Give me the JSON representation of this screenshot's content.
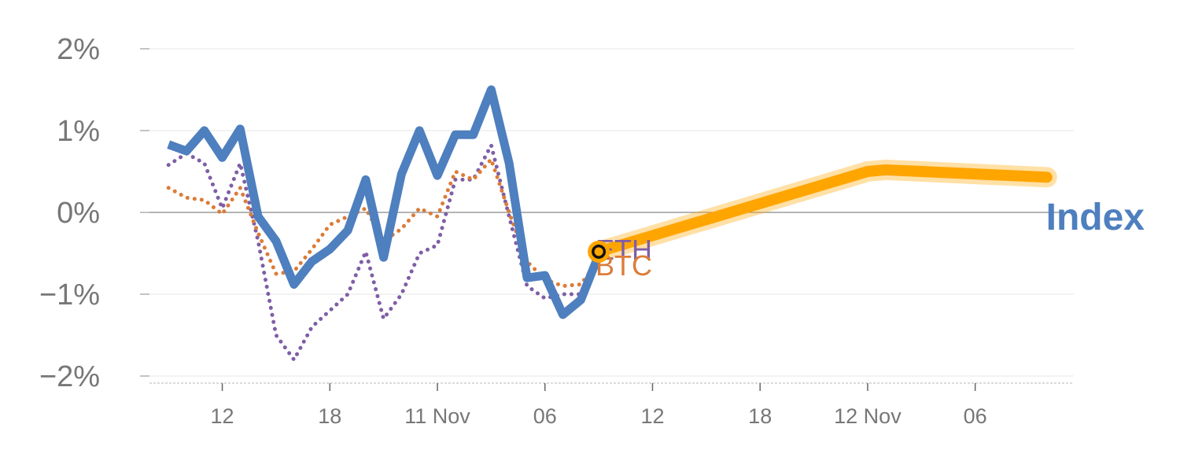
{
  "chart_data": {
    "type": "line",
    "y_unit": "%",
    "ylim": [
      -2,
      2
    ],
    "y_ticks": [
      {
        "value": 2,
        "label": "2%"
      },
      {
        "value": 1,
        "label": "1%"
      },
      {
        "value": 0,
        "label": "0%"
      },
      {
        "value": -1,
        "label": "−1%"
      },
      {
        "value": -2,
        "label": "−2%"
      }
    ],
    "x_ticks": [
      {
        "x": 4,
        "label": "12"
      },
      {
        "x": 10,
        "label": "18"
      },
      {
        "x": 16,
        "label": "11 Nov"
      },
      {
        "x": 22,
        "label": "06"
      },
      {
        "x": 28,
        "label": "12"
      },
      {
        "x": 34,
        "label": "18"
      },
      {
        "x": 40,
        "label": "12 Nov"
      },
      {
        "x": 46,
        "label": "06"
      }
    ],
    "xlim": [
      -0.5,
      51.5
    ],
    "grid": true,
    "series": [
      {
        "name": "Index",
        "color": "#4e7fbf",
        "style": "solid",
        "x": [
          1,
          2,
          3,
          4,
          5,
          6,
          7,
          8,
          9,
          10,
          11,
          12,
          13,
          14,
          15,
          16,
          17,
          18,
          19,
          20,
          21,
          22,
          23,
          24,
          25
        ],
        "values": [
          0.83,
          0.75,
          1.0,
          0.67,
          1.02,
          -0.05,
          -0.35,
          -0.88,
          -0.6,
          -0.45,
          -0.22,
          0.4,
          -0.55,
          0.47,
          1.0,
          0.45,
          0.95,
          0.95,
          1.5,
          0.6,
          -0.8,
          -0.77,
          -1.25,
          -1.07,
          -0.52
        ]
      },
      {
        "name": "BTC",
        "color": "#dc7c38",
        "style": "dotted",
        "x": [
          1,
          2,
          3,
          4,
          5,
          6,
          7,
          8,
          9,
          10,
          11,
          12,
          13,
          14,
          15,
          16,
          17,
          18,
          19,
          20,
          21,
          22,
          23,
          24,
          25
        ],
        "values": [
          0.3,
          0.18,
          0.15,
          -0.02,
          0.3,
          -0.25,
          -0.75,
          -0.72,
          -0.45,
          -0.15,
          -0.05,
          0.05,
          -0.35,
          -0.2,
          0.05,
          -0.05,
          0.5,
          0.4,
          0.65,
          0.0,
          -0.6,
          -0.82,
          -0.9,
          -0.88,
          -0.58
        ]
      },
      {
        "name": "ETH",
        "color": "#7f5ea6",
        "style": "dotted",
        "x": [
          1,
          2,
          3,
          4,
          5,
          6,
          7,
          8,
          9,
          10,
          11,
          12,
          13,
          14,
          15,
          16,
          17,
          18,
          19,
          20,
          21,
          22,
          23,
          24,
          25
        ],
        "values": [
          0.58,
          0.72,
          0.6,
          0.05,
          0.6,
          -0.35,
          -1.5,
          -1.8,
          -1.4,
          -1.2,
          -1.0,
          -0.48,
          -1.3,
          -1.0,
          -0.5,
          -0.4,
          0.4,
          0.4,
          0.82,
          -0.05,
          -0.9,
          -1.05,
          -1.0,
          -1.0,
          -0.48
        ]
      },
      {
        "name": "",
        "color": "#ffa500",
        "style": "forecast",
        "x": [
          25,
          40,
          41,
          50
        ],
        "values": [
          -0.48,
          0.5,
          0.52,
          0.43
        ]
      }
    ]
  }
}
